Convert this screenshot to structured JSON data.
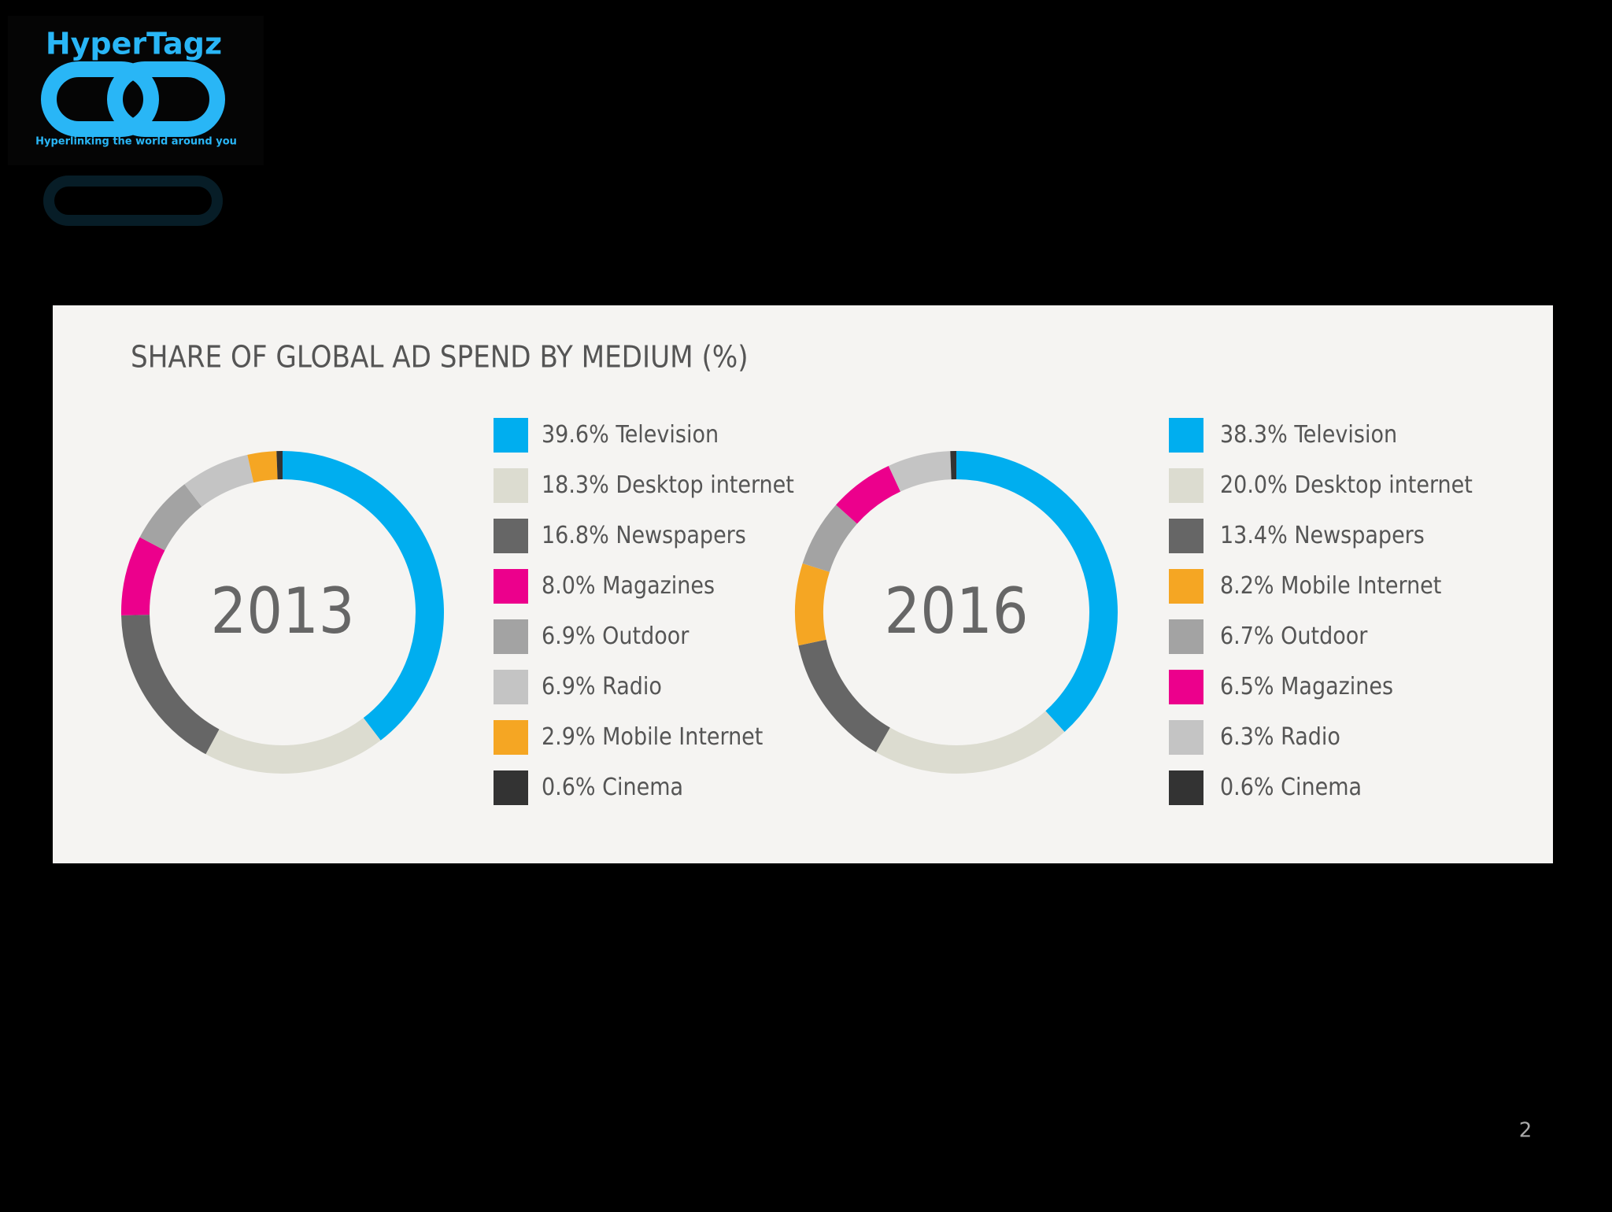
{
  "logo": {
    "name": "HyperTagz",
    "tagline": "Hyperlinking the world around you"
  },
  "title": "SHARE OF GLOBAL AD SPEND BY MEDIUM (%)",
  "page_number": "2",
  "chart_data": [
    {
      "type": "donut",
      "center_label": "2013",
      "categories": [
        "Television",
        "Desktop internet",
        "Newspapers",
        "Magazines",
        "Outdoor",
        "Radio",
        "Mobile Internet",
        "Cinema"
      ],
      "values": [
        39.6,
        18.3,
        16.8,
        8,
        6.9,
        6.9,
        2.9,
        0.6
      ],
      "value_labels": [
        "39.6%",
        "18.3%",
        "16.8%",
        "8.0%",
        "6.9%",
        "6.9%",
        "2.9%",
        "0.6%"
      ],
      "colors": [
        "#00aeef",
        "#dcdcd0",
        "#666666",
        "#ec008c",
        "#a3a3a3",
        "#c4c4c4",
        "#f5a623",
        "#333333"
      ]
    },
    {
      "type": "donut",
      "center_label": "2016",
      "categories": [
        "Television",
        "Desktop internet",
        "Newspapers",
        "Mobile Internet",
        "Outdoor",
        "Magazines",
        "Radio",
        "Cinema"
      ],
      "values": [
        38.3,
        20,
        13.4,
        8.2,
        6.7,
        6.5,
        6.3,
        0.6
      ],
      "value_labels": [
        "38.3%",
        "20.0%",
        "13.4%",
        "8.2%",
        "6.7%",
        "6.5%",
        "6.3%",
        "0.6%"
      ],
      "colors": [
        "#00aeef",
        "#dcdcd0",
        "#666666",
        "#f5a623",
        "#a3a3a3",
        "#ec008c",
        "#c4c4c4",
        "#333333"
      ]
    }
  ]
}
